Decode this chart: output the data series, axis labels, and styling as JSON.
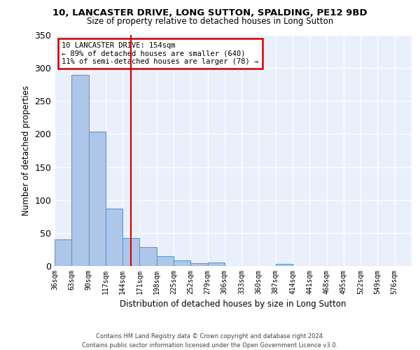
{
  "title_line1": "10, LANCASTER DRIVE, LONG SUTTON, SPALDING, PE12 9BD",
  "title_line2": "Size of property relative to detached houses in Long Sutton",
  "xlabel": "Distribution of detached houses by size in Long Sutton",
  "ylabel": "Number of detached properties",
  "footnote": "Contains HM Land Registry data © Crown copyright and database right 2024.\nContains public sector information licensed under the Open Government Licence v3.0.",
  "annotation_line1": "10 LANCASTER DRIVE: 154sqm",
  "annotation_line2": "← 89% of detached houses are smaller (640)",
  "annotation_line3": "11% of semi-detached houses are larger (78) →",
  "property_size": 154,
  "bar_left_edges": [
    36,
    63,
    90,
    117,
    144,
    171,
    198,
    225,
    252,
    279,
    306,
    333,
    360,
    387,
    414,
    441,
    468,
    495,
    522,
    549
  ],
  "bar_heights": [
    40,
    290,
    204,
    87,
    42,
    29,
    15,
    8,
    4,
    5,
    0,
    0,
    0,
    3,
    0,
    0,
    0,
    0,
    0,
    0
  ],
  "bin_width": 27,
  "bar_color": "#aec6e8",
  "bar_edge_color": "#5b9bd5",
  "vline_x": 157.5,
  "vline_color": "#cc0000",
  "annotation_box_edge_color": "#cc0000",
  "background_color": "#eaf0fb",
  "ylim": [
    0,
    350
  ],
  "yticks": [
    0,
    50,
    100,
    150,
    200,
    250,
    300,
    350
  ],
  "xlim": [
    36,
    603
  ],
  "tick_labels": [
    "36sqm",
    "63sqm",
    "90sqm",
    "117sqm",
    "144sqm",
    "171sqm",
    "198sqm",
    "225sqm",
    "252sqm",
    "279sqm",
    "306sqm",
    "333sqm",
    "360sqm",
    "387sqm",
    "414sqm",
    "441sqm",
    "468sqm",
    "495sqm",
    "522sqm",
    "549sqm",
    "576sqm"
  ]
}
